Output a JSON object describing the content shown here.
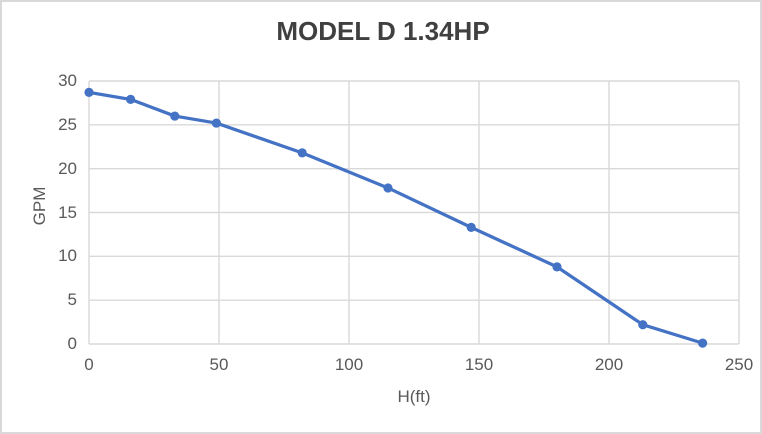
{
  "chart_data": {
    "type": "line",
    "title": "MODEL D 1.34HP",
    "xlabel": "H(ft)",
    "ylabel": "GPM",
    "xlim": [
      0,
      250
    ],
    "ylim": [
      0,
      30
    ],
    "x_ticks": [
      0,
      50,
      100,
      150,
      200,
      250
    ],
    "y_ticks": [
      0,
      5,
      10,
      15,
      20,
      25,
      30
    ],
    "grid": true,
    "legend": false,
    "series": [
      {
        "x": [
          0,
          16,
          33,
          49,
          82,
          115,
          147,
          180,
          213,
          236
        ],
        "y": [
          28.7,
          27.9,
          26.0,
          25.2,
          21.8,
          17.8,
          13.3,
          8.8,
          2.2,
          0.1
        ],
        "marker": "circle",
        "color": "#4472C4"
      }
    ]
  },
  "colors": {
    "line": "#4472C4",
    "gridline": "#D9D9D9",
    "tick_text": "#595959",
    "title_text": "#404040",
    "background": "#FFFFFF",
    "border": "#D9D9D9"
  }
}
